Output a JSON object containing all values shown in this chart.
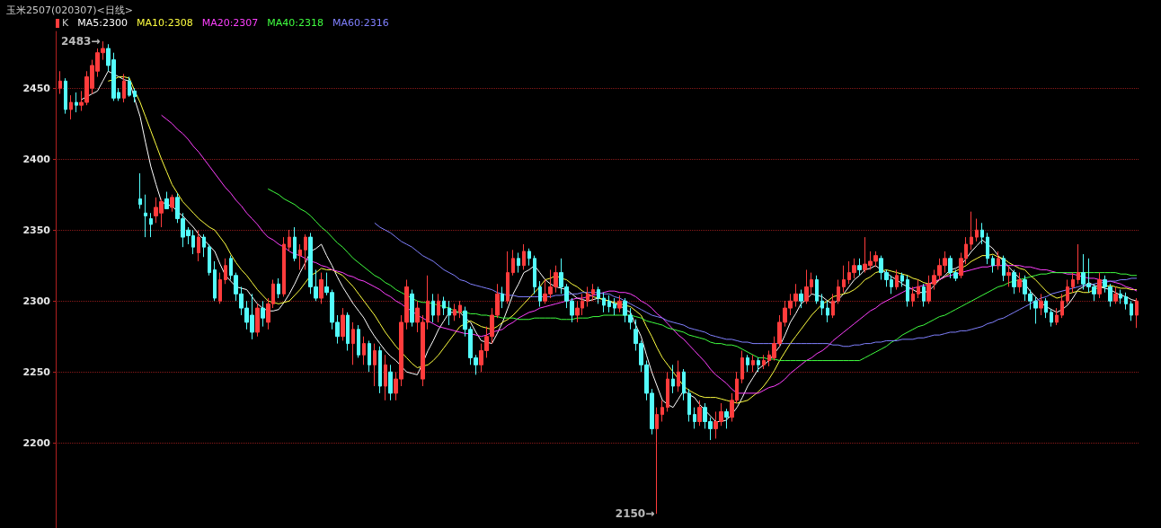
{
  "chart_data": {
    "type": "candlestick",
    "title": "玉米2507(020307)<日线>",
    "categories": [
      null,
      null,
      null,
      null,
      null,
      null,
      null,
      null,
      null,
      null,
      null,
      null,
      null,
      null,
      null,
      null,
      null,
      null,
      null,
      null,
      null,
      null,
      null,
      null,
      null,
      null,
      null,
      null,
      null,
      null,
      null,
      null,
      null,
      null,
      null,
      null,
      null,
      null,
      null,
      null,
      null,
      null,
      null,
      null,
      null,
      null,
      null,
      null,
      null,
      null,
      null,
      null,
      null,
      null,
      null,
      null,
      null,
      null,
      null,
      null,
      null,
      null,
      null,
      null,
      null,
      null,
      null,
      null,
      null,
      null,
      null,
      null,
      null,
      null,
      null,
      null,
      null,
      null,
      null,
      null,
      null,
      null,
      null,
      null,
      null,
      null,
      null,
      null,
      null,
      null,
      null,
      null,
      null,
      null,
      null,
      null,
      null,
      null,
      null,
      null,
      null,
      null,
      null,
      null,
      null,
      null,
      null,
      null,
      null,
      null,
      null,
      null,
      null,
      null,
      null,
      null,
      null,
      null,
      null,
      null,
      null,
      null,
      null,
      null,
      null,
      null,
      null,
      null,
      null,
      null,
      null,
      null,
      null,
      null,
      null,
      null,
      null,
      null,
      null,
      null,
      null,
      null,
      null,
      null,
      null,
      null,
      null,
      null,
      null,
      null,
      null,
      null,
      null,
      null,
      null,
      null,
      null,
      null,
      null,
      null,
      null,
      null,
      null,
      null,
      null,
      null,
      null,
      null,
      null,
      null,
      null,
      null,
      null,
      null,
      null,
      null,
      null,
      null,
      null,
      null,
      null,
      null,
      null,
      null,
      null,
      null,
      null,
      null,
      null,
      null,
      null,
      null,
      null,
      null,
      null,
      null,
      null,
      null,
      null,
      null,
      null,
      null,
      null
    ],
    "ylim": [
      2140,
      2490
    ],
    "yticks": [
      2200,
      2250,
      2300,
      2350,
      2400,
      2450
    ],
    "grid": "y",
    "tick_labels": "y",
    "annotations": [
      "2483→",
      "2150→"
    ],
    "series": [
      {
        "name": "K",
        "ohlc": [
          [
            2450,
            2462,
            2446,
            2455
          ],
          [
            2455,
            2457,
            2432,
            2435
          ],
          [
            2435,
            2445,
            2428,
            2440
          ],
          [
            2440,
            2447,
            2433,
            2438
          ],
          [
            2438,
            2448,
            2434,
            2440
          ],
          [
            2440,
            2462,
            2438,
            2458
          ],
          [
            2450,
            2470,
            2446,
            2466
          ],
          [
            2462,
            2478,
            2458,
            2475
          ],
          [
            2475,
            2483,
            2470,
            2478
          ],
          [
            2478,
            2481,
            2462,
            2466
          ],
          [
            2470,
            2475,
            2441,
            2443
          ],
          [
            2447,
            2450,
            2441,
            2443
          ],
          [
            2443,
            2460,
            2440,
            2455
          ],
          [
            2455,
            2458,
            2444,
            2445
          ],
          [
            2448,
            2450,
            2440,
            2444
          ],
          [
            2372,
            2390,
            2365,
            2368
          ],
          [
            2362,
            2375,
            2345,
            2360
          ],
          [
            2358,
            2362,
            2345,
            2354
          ],
          [
            2360,
            2373,
            2355,
            2366
          ],
          [
            2362,
            2372,
            2352,
            2370
          ],
          [
            2372,
            2377,
            2365,
            2365
          ],
          [
            2366,
            2375,
            2363,
            2373
          ],
          [
            2373,
            2376,
            2355,
            2358
          ],
          [
            2358,
            2362,
            2338,
            2345
          ],
          [
            2350,
            2352,
            2340,
            2346
          ],
          [
            2346,
            2350,
            2333,
            2338
          ],
          [
            2334,
            2350,
            2328,
            2345
          ],
          [
            2345,
            2347,
            2331,
            2338
          ],
          [
            2338,
            2340,
            2318,
            2320
          ],
          [
            2322,
            2328,
            2300,
            2302
          ],
          [
            2300,
            2320,
            2298,
            2315
          ],
          [
            2315,
            2330,
            2312,
            2325
          ],
          [
            2330,
            2332,
            2315,
            2318
          ],
          [
            2318,
            2320,
            2300,
            2305
          ],
          [
            2305,
            2310,
            2290,
            2295
          ],
          [
            2295,
            2300,
            2280,
            2285
          ],
          [
            2290,
            2305,
            2273,
            2278
          ],
          [
            2278,
            2298,
            2275,
            2295
          ],
          [
            2295,
            2300,
            2282,
            2288
          ],
          [
            2285,
            2302,
            2280,
            2298
          ],
          [
            2298,
            2315,
            2295,
            2312
          ],
          [
            2312,
            2316,
            2302,
            2305
          ],
          [
            2305,
            2345,
            2303,
            2340
          ],
          [
            2338,
            2350,
            2335,
            2345
          ],
          [
            2345,
            2352,
            2328,
            2330
          ],
          [
            2332,
            2340,
            2322,
            2336
          ],
          [
            2336,
            2347,
            2322,
            2345
          ],
          [
            2345,
            2348,
            2305,
            2310
          ],
          [
            2310,
            2322,
            2300,
            2302
          ],
          [
            2302,
            2320,
            2298,
            2315
          ],
          [
            2310,
            2320,
            2304,
            2306
          ],
          [
            2306,
            2308,
            2280,
            2285
          ],
          [
            2285,
            2290,
            2270,
            2275
          ],
          [
            2275,
            2295,
            2272,
            2290
          ],
          [
            2290,
            2292,
            2265,
            2270
          ],
          [
            2270,
            2285,
            2255,
            2280
          ],
          [
            2280,
            2283,
            2260,
            2262
          ],
          [
            2262,
            2275,
            2255,
            2270
          ],
          [
            2270,
            2272,
            2250,
            2255
          ],
          [
            2255,
            2270,
            2240,
            2265
          ],
          [
            2265,
            2268,
            2235,
            2240
          ],
          [
            2240,
            2262,
            2230,
            2255
          ],
          [
            2250,
            2255,
            2230,
            2235
          ],
          [
            2235,
            2250,
            2230,
            2245
          ],
          [
            2245,
            2290,
            2240,
            2285
          ],
          [
            2285,
            2315,
            2280,
            2310
          ],
          [
            2305,
            2308,
            2282,
            2285
          ],
          [
            2285,
            2300,
            2278,
            2295
          ],
          [
            2245,
            2290,
            2240,
            2285
          ],
          [
            2285,
            2318,
            2280,
            2300
          ],
          [
            2300,
            2305,
            2285,
            2290
          ],
          [
            2290,
            2305,
            2285,
            2300
          ],
          [
            2300,
            2303,
            2290,
            2295
          ],
          [
            2295,
            2300,
            2283,
            2290
          ],
          [
            2290,
            2298,
            2286,
            2294
          ],
          [
            2292,
            2300,
            2288,
            2297
          ],
          [
            2293,
            2296,
            2275,
            2280
          ],
          [
            2280,
            2282,
            2255,
            2260
          ],
          [
            2260,
            2262,
            2248,
            2255
          ],
          [
            2255,
            2270,
            2250,
            2265
          ],
          [
            2265,
            2282,
            2260,
            2275
          ],
          [
            2275,
            2295,
            2270,
            2290
          ],
          [
            2290,
            2312,
            2288,
            2305
          ],
          [
            2305,
            2310,
            2295,
            2300
          ],
          [
            2300,
            2335,
            2298,
            2320
          ],
          [
            2320,
            2336,
            2318,
            2330
          ],
          [
            2330,
            2334,
            2320,
            2325
          ],
          [
            2325,
            2340,
            2322,
            2335
          ],
          [
            2335,
            2337,
            2325,
            2330
          ],
          [
            2330,
            2332,
            2305,
            2310
          ],
          [
            2310,
            2314,
            2296,
            2300
          ],
          [
            2300,
            2315,
            2298,
            2305
          ],
          [
            2305,
            2322,
            2302,
            2310
          ],
          [
            2310,
            2325,
            2306,
            2320
          ],
          [
            2320,
            2330,
            2305,
            2310
          ],
          [
            2310,
            2312,
            2295,
            2300
          ],
          [
            2300,
            2302,
            2285,
            2290
          ],
          [
            2290,
            2300,
            2285,
            2295
          ],
          [
            2295,
            2305,
            2290,
            2300
          ],
          [
            2300,
            2310,
            2296,
            2305
          ],
          [
            2305,
            2312,
            2300,
            2308
          ],
          [
            2308,
            2310,
            2298,
            2302
          ],
          [
            2302,
            2306,
            2292,
            2297
          ],
          [
            2300,
            2304,
            2292,
            2296
          ],
          [
            2298,
            2302,
            2290,
            2295
          ],
          [
            2295,
            2304,
            2292,
            2300
          ],
          [
            2300,
            2302,
            2285,
            2290
          ],
          [
            2290,
            2295,
            2280,
            2285
          ],
          [
            2280,
            2287,
            2265,
            2270
          ],
          [
            2270,
            2272,
            2250,
            2255
          ],
          [
            2255,
            2258,
            2230,
            2235
          ],
          [
            2235,
            2238,
            2206,
            2210
          ],
          [
            2210,
            2225,
            2150,
            2220
          ],
          [
            2220,
            2230,
            2215,
            2225
          ],
          [
            2225,
            2250,
            2222,
            2245
          ],
          [
            2245,
            2255,
            2235,
            2240
          ],
          [
            2240,
            2258,
            2236,
            2250
          ],
          [
            2250,
            2252,
            2230,
            2235
          ],
          [
            2235,
            2238,
            2215,
            2220
          ],
          [
            2220,
            2225,
            2210,
            2215
          ],
          [
            2215,
            2230,
            2212,
            2225
          ],
          [
            2225,
            2228,
            2210,
            2215
          ],
          [
            2215,
            2218,
            2202,
            2210
          ],
          [
            2210,
            2222,
            2203,
            2215
          ],
          [
            2215,
            2228,
            2212,
            2222
          ],
          [
            2222,
            2224,
            2210,
            2218
          ],
          [
            2218,
            2235,
            2215,
            2230
          ],
          [
            2230,
            2250,
            2228,
            2245
          ],
          [
            2245,
            2265,
            2242,
            2260
          ],
          [
            2260,
            2262,
            2250,
            2255
          ],
          [
            2255,
            2262,
            2250,
            2258
          ],
          [
            2258,
            2260,
            2250,
            2255
          ],
          [
            2255,
            2262,
            2252,
            2258
          ],
          [
            2258,
            2265,
            2254,
            2262
          ],
          [
            2260,
            2275,
            2258,
            2270
          ],
          [
            2270,
            2290,
            2268,
            2285
          ],
          [
            2285,
            2300,
            2282,
            2295
          ],
          [
            2295,
            2305,
            2290,
            2300
          ],
          [
            2300,
            2312,
            2296,
            2305
          ],
          [
            2305,
            2308,
            2295,
            2300
          ],
          [
            2300,
            2322,
            2298,
            2310
          ],
          [
            2310,
            2320,
            2305,
            2315
          ],
          [
            2315,
            2318,
            2298,
            2300
          ],
          [
            2300,
            2305,
            2290,
            2295
          ],
          [
            2295,
            2300,
            2285,
            2290
          ],
          [
            2290,
            2305,
            2288,
            2300
          ],
          [
            2300,
            2315,
            2298,
            2310
          ],
          [
            2310,
            2325,
            2306,
            2315
          ],
          [
            2315,
            2328,
            2312,
            2320
          ],
          [
            2320,
            2330,
            2316,
            2325
          ],
          [
            2325,
            2330,
            2318,
            2322
          ],
          [
            2322,
            2345,
            2320,
            2326
          ],
          [
            2325,
            2335,
            2322,
            2328
          ],
          [
            2328,
            2335,
            2324,
            2332
          ],
          [
            2330,
            2332,
            2315,
            2320
          ],
          [
            2320,
            2322,
            2310,
            2315
          ],
          [
            2315,
            2318,
            2305,
            2310
          ],
          [
            2310,
            2322,
            2308,
            2318
          ],
          [
            2318,
            2320,
            2310,
            2314
          ],
          [
            2315,
            2318,
            2296,
            2300
          ],
          [
            2300,
            2310,
            2296,
            2305
          ],
          [
            2305,
            2315,
            2302,
            2310
          ],
          [
            2310,
            2312,
            2296,
            2300
          ],
          [
            2300,
            2318,
            2298,
            2312
          ],
          [
            2312,
            2322,
            2308,
            2318
          ],
          [
            2318,
            2330,
            2315,
            2325
          ],
          [
            2325,
            2335,
            2320,
            2330
          ],
          [
            2330,
            2332,
            2316,
            2320
          ],
          [
            2320,
            2322,
            2314,
            2316
          ],
          [
            2318,
            2334,
            2316,
            2330
          ],
          [
            2330,
            2345,
            2326,
            2340
          ],
          [
            2340,
            2363,
            2336,
            2345
          ],
          [
            2345,
            2358,
            2342,
            2350
          ],
          [
            2350,
            2355,
            2340,
            2345
          ],
          [
            2345,
            2348,
            2326,
            2330
          ],
          [
            2330,
            2332,
            2320,
            2325
          ],
          [
            2325,
            2335,
            2322,
            2330
          ],
          [
            2330,
            2332,
            2314,
            2318
          ],
          [
            2318,
            2325,
            2310,
            2320
          ],
          [
            2320,
            2322,
            2305,
            2310
          ],
          [
            2310,
            2320,
            2306,
            2315
          ],
          [
            2315,
            2318,
            2300,
            2305
          ],
          [
            2305,
            2308,
            2294,
            2300
          ],
          [
            2300,
            2303,
            2284,
            2295
          ],
          [
            2295,
            2305,
            2290,
            2300
          ],
          [
            2300,
            2302,
            2288,
            2292
          ],
          [
            2292,
            2294,
            2282,
            2285
          ],
          [
            2285,
            2295,
            2283,
            2290
          ],
          [
            2290,
            2305,
            2288,
            2300
          ],
          [
            2300,
            2315,
            2298,
            2310
          ],
          [
            2310,
            2320,
            2306,
            2315
          ],
          [
            2315,
            2340,
            2312,
            2320
          ],
          [
            2320,
            2333,
            2308,
            2312
          ],
          [
            2312,
            2330,
            2306,
            2310
          ],
          [
            2310,
            2312,
            2300,
            2305
          ],
          [
            2305,
            2320,
            2302,
            2315
          ],
          [
            2315,
            2318,
            2306,
            2310
          ],
          [
            2310,
            2312,
            2296,
            2300
          ],
          [
            2300,
            2310,
            2298,
            2305
          ],
          [
            2305,
            2308,
            2298,
            2302
          ],
          [
            2303,
            2306,
            2294,
            2298
          ],
          [
            2298,
            2300,
            2286,
            2290
          ],
          [
            2290,
            2302,
            2281,
            2300
          ]
        ]
      },
      {
        "name": "MA5:2300",
        "type": "line",
        "color": "#ffffff",
        "values": [
          null,
          null,
          null,
          null,
          2442,
          2444,
          2446,
          2448,
          2455,
          2462,
          2460,
          2458,
          2456,
          2455,
          2442,
          2430,
          2412,
          2395,
          2382,
          2370,
          2368,
          2367,
          2363,
          2360,
          2356,
          2352,
          2347,
          2343,
          2339,
          2335,
          2326,
          2318,
          2314,
          2310,
          2309,
          2308,
          2303,
          2298,
          2295,
          2293,
          2293,
          2294,
          2299,
          2305,
          2312,
          2320,
          2327,
          2335,
          2337,
          2340,
          2332,
          2325,
          2317,
          2310,
          2304,
          2298,
          2293,
          2288,
          2281,
          2275,
          2270,
          2265,
          2261,
          2258,
          2254,
          2250,
          2249,
          2248,
          2256,
          2265,
          2272,
          2280,
          2286,
          2292,
          2292,
          2292,
          2288,
          2285,
          2278,
          2272,
          2271,
          2270,
          2277,
          2285,
          2295,
          2305,
          2312,
          2320,
          2322,
          2325,
          2320,
          2315,
          2312,
          2310,
          2309,
          2308,
          2305,
          2302,
          2301,
          2300,
          2301,
          2302,
          2301,
          2300,
          2298,
          2297,
          2294,
          2292,
          2283,
          2275,
          2262,
          2250,
          2240,
          2230,
          2227,
          2225,
          2231,
          2237,
          2234,
          2232,
          2227,
          2223,
          2219,
          2215,
          2215,
          2216,
          2220,
          2225,
          2232,
          2240,
          2246,
          2252,
          2255,
          2258,
          2263,
          2268,
          2276,
          2285,
          2291,
          2298,
          2301,
          2305,
          2304,
          2303,
          2300,
          2298,
          2301,
          2305,
          2310,
          2315,
          2318,
          2322,
          2323,
          2325,
          2322,
          2320,
          2317,
          2315,
          2312,
          2310,
          2308,
          2306,
          2306,
          2307,
          2311,
          2315,
          2318,
          2322,
          2323,
          2325,
          2330,
          2335,
          2339,
          2343,
          2340,
          2337,
          2332,
          2328,
          2324,
          2320,
          2316,
          2312,
          2307,
          2303,
          2299,
          2296,
          2294,
          2292,
          2294,
          2297,
          2302,
          2308,
          2310,
          2313,
          2311,
          2310,
          2309,
          2308,
          2306,
          2304,
          2303,
          2301,
          2300
        ]
      },
      {
        "name": "MA10:2308",
        "type": "line",
        "color": "#ffff40",
        "values": [
          null,
          null,
          null,
          null,
          null,
          null,
          null,
          null,
          null,
          2455,
          2456,
          2458,
          2458,
          2457,
          2448,
          2440,
          2430,
          2420,
          2410,
          2400,
          2391,
          2382,
          2376,
          2370,
          2366,
          2362,
          2358,
          2355,
          2352,
          2350,
          2345,
          2340,
          2333,
          2327,
          2322,
          2318,
          2313,
          2308,
          2304,
          2300,
          2299,
          2298,
          2299,
          2300,
          2304,
          2308,
          2313,
          2318,
          2320,
          2323,
          2322,
          2322,
          2320,
          2318,
          2314,
          2310,
          2305,
          2300,
          2295,
          2290,
          2284,
          2278,
          2273,
          2268,
          2264,
          2260,
          2256,
          2253,
          2254,
          2255,
          2258,
          2262,
          2267,
          2272,
          2277,
          2282,
          2284,
          2286,
          2284,
          2282,
          2281,
          2280,
          2282,
          2285,
          2287,
          2290,
          2294,
          2298,
          2302,
          2306,
          2310,
          2315,
          2316,
          2318,
          2316,
          2315,
          2312,
          2310,
          2307,
          2305,
          2303,
          2302,
          2301,
          2300,
          2299,
          2298,
          2297,
          2296,
          2293,
          2290,
          2282,
          2275,
          2267,
          2260,
          2255,
          2250,
          2245,
          2240,
          2237,
          2235,
          2233,
          2232,
          2232,
          2232,
          2231,
          2230,
          2229,
          2228,
          2229,
          2230,
          2233,
          2236,
          2240,
          2245,
          2251,
          2258,
          2264,
          2270,
          2275,
          2280,
          2285,
          2290,
          2294,
          2298,
          2300,
          2303,
          2304,
          2305,
          2306,
          2308,
          2311,
          2315,
          2317,
          2320,
          2321,
          2322,
          2321,
          2320,
          2319,
          2318,
          2316,
          2315,
          2313,
          2312,
          2313,
          2315,
          2317,
          2320,
          2321,
          2323,
          2325,
          2328,
          2330,
          2332,
          2332,
          2333,
          2331,
          2330,
          2327,
          2325,
          2323,
          2322,
          2318,
          2315,
          2311,
          2307,
          2304,
          2302,
          2303,
          2305,
          2306,
          2307,
          2306,
          2306,
          2308,
          2310,
          2310,
          2311,
          2310,
          2309,
          2309,
          2308,
          2308
        ]
      },
      {
        "name": "MA20:2307",
        "type": "line",
        "color": "#ff40ff",
        "values": [
          null,
          null,
          null,
          null,
          null,
          null,
          null,
          null,
          null,
          null,
          null,
          null,
          null,
          null,
          null,
          null,
          null,
          null,
          null,
          2431,
          2428,
          2425,
          2421,
          2418,
          2414,
          2409,
          2405,
          2400,
          2395,
          2390,
          2385,
          2380,
          2376,
          2371,
          2367,
          2362,
          2358,
          2354,
          2349,
          2345,
          2343,
          2340,
          2338,
          2335,
          2333,
          2332,
          2330,
          2328,
          2327,
          2325,
          2324,
          2322,
          2321,
          2320,
          2318,
          2317,
          2315,
          2314,
          2312,
          2310,
          2308,
          2305,
          2303,
          2300,
          2298,
          2295,
          2293,
          2290,
          2288,
          2286,
          2284,
          2282,
          2281,
          2280,
          2279,
          2278,
          2277,
          2277,
          2276,
          2275,
          2276,
          2278,
          2279,
          2280,
          2283,
          2285,
          2288,
          2290,
          2292,
          2293,
          2295,
          2296,
          2297,
          2298,
          2299,
          2300,
          2301,
          2302,
          2302,
          2303,
          2304,
          2305,
          2306,
          2307,
          2307,
          2306,
          2306,
          2305,
          2303,
          2300,
          2298,
          2295,
          2291,
          2288,
          2284,
          2280,
          2276,
          2273,
          2269,
          2265,
          2261,
          2257,
          2252,
          2248,
          2245,
          2242,
          2238,
          2235,
          2235,
          2235,
          2235,
          2235,
          2237,
          2239,
          2240,
          2242,
          2245,
          2249,
          2252,
          2255,
          2258,
          2260,
          2263,
          2265,
          2268,
          2272,
          2275,
          2278,
          2281,
          2284,
          2287,
          2290,
          2293,
          2295,
          2298,
          2300,
          2302,
          2304,
          2306,
          2308,
          2309,
          2310,
          2311,
          2312,
          2314,
          2315,
          2317,
          2318,
          2319,
          2320,
          2321,
          2322,
          2323,
          2324,
          2324,
          2325,
          2325,
          2325,
          2325,
          2325,
          2325,
          2324,
          2324,
          2323,
          2322,
          2322,
          2321,
          2320,
          2320,
          2319,
          2319,
          2318,
          2317,
          2316,
          2316,
          2315,
          2314,
          2314,
          2313,
          2312,
          2310,
          2309,
          2307
        ]
      },
      {
        "name": "MA40:2318",
        "type": "line",
        "color": "#40ff40",
        "values": [
          null,
          null,
          null,
          null,
          null,
          null,
          null,
          null,
          null,
          null,
          null,
          null,
          null,
          null,
          null,
          null,
          null,
          null,
          null,
          null,
          null,
          null,
          null,
          null,
          null,
          null,
          null,
          null,
          null,
          null,
          null,
          null,
          null,
          null,
          null,
          null,
          null,
          null,
          null,
          2379,
          2377,
          2375,
          2372,
          2370,
          2368,
          2365,
          2363,
          2360,
          2356,
          2352,
          2349,
          2345,
          2341,
          2338,
          2334,
          2330,
          2327,
          2324,
          2321,
          2318,
          2316,
          2313,
          2311,
          2308,
          2306,
          2304,
          2302,
          2300,
          2299,
          2299,
          2298,
          2297,
          2296,
          2295,
          2293,
          2292,
          2292,
          2291,
          2291,
          2290,
          2290,
          2289,
          2289,
          2288,
          2288,
          2288,
          2287,
          2287,
          2287,
          2288,
          2288,
          2288,
          2288,
          2288,
          2287,
          2287,
          2287,
          2288,
          2288,
          2288,
          2289,
          2289,
          2290,
          2290,
          2290,
          2290,
          2290,
          2290,
          2289,
          2288,
          2286,
          2285,
          2284,
          2283,
          2281,
          2280,
          2279,
          2278,
          2276,
          2275,
          2274,
          2273,
          2271,
          2270,
          2270,
          2269,
          2269,
          2268,
          2266,
          2264,
          2262,
          2260,
          2260,
          2259,
          2259,
          2258,
          2258,
          2258,
          2258,
          2258,
          2258,
          2258,
          2258,
          2258,
          2258,
          2258,
          2258,
          2258,
          2258,
          2258,
          2258,
          2260,
          2262,
          2264,
          2266,
          2268,
          2271,
          2273,
          2276,
          2278,
          2280,
          2282,
          2283,
          2285,
          2287,
          2289,
          2290,
          2292,
          2294,
          2296,
          2298,
          2300,
          2302,
          2304,
          2306,
          2308,
          2310,
          2311,
          2313,
          2314,
          2315,
          2316,
          2317,
          2318,
          2319,
          2319,
          2320,
          2320,
          2320,
          2320,
          2320,
          2320,
          2320,
          2320,
          2320,
          2320,
          2320,
          2320,
          2320,
          2319,
          2319,
          2318,
          2318
        ]
      },
      {
        "name": "MA60:2316",
        "type": "line",
        "color": "#8080ff",
        "values": [
          null,
          null,
          null,
          null,
          null,
          null,
          null,
          null,
          null,
          null,
          null,
          null,
          null,
          null,
          null,
          null,
          null,
          null,
          null,
          null,
          null,
          null,
          null,
          null,
          null,
          null,
          null,
          null,
          null,
          null,
          null,
          null,
          null,
          null,
          null,
          null,
          null,
          null,
          null,
          null,
          null,
          null,
          null,
          null,
          null,
          null,
          null,
          null,
          null,
          null,
          null,
          null,
          null,
          null,
          null,
          null,
          null,
          null,
          null,
          2355,
          2352,
          2350,
          2348,
          2345,
          2342,
          2340,
          2338,
          2335,
          2332,
          2330,
          2328,
          2325,
          2322,
          2320,
          2318,
          2315,
          2314,
          2312,
          2311,
          2310,
          2309,
          2308,
          2306,
          2305,
          2304,
          2304,
          2303,
          2303,
          2303,
          2303,
          2303,
          2303,
          2303,
          2304,
          2304,
          2305,
          2305,
          2305,
          2306,
          2306,
          2306,
          2306,
          2305,
          2305,
          2303,
          2302,
          2300,
          2298,
          2296,
          2294,
          2292,
          2290,
          2289,
          2288,
          2286,
          2285,
          2284,
          2283,
          2281,
          2280,
          2279,
          2278,
          2276,
          2275,
          2274,
          2273,
          2273,
          2272,
          2271,
          2271,
          2270,
          2270,
          2270,
          2270,
          2270,
          2270,
          2270,
          2270,
          2270,
          2270,
          2270,
          2270,
          2270,
          2270,
          2270,
          2269,
          2269,
          2268,
          2268,
          2269,
          2269,
          2270,
          2270,
          2271,
          2271,
          2272,
          2272,
          2272,
          2273,
          2273,
          2273,
          2274,
          2274,
          2275,
          2276,
          2276,
          2277,
          2278,
          2278,
          2279,
          2279,
          2280,
          2281,
          2282,
          2284,
          2285,
          2287,
          2288,
          2290,
          2292,
          2294,
          2296,
          2298,
          2300,
          2302,
          2303,
          2305,
          2306,
          2307,
          2308,
          2309,
          2310,
          2311,
          2311,
          2312,
          2313,
          2313,
          2314,
          2314,
          2315,
          2315,
          2316,
          2316
        ]
      }
    ]
  }
}
